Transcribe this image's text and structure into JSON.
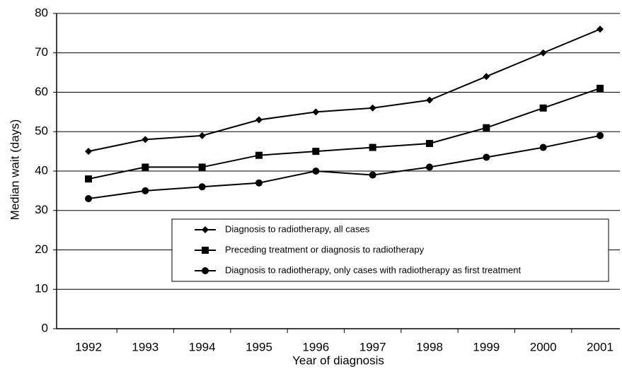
{
  "chart_data": {
    "type": "line",
    "xlabel": "Year of diagnosis",
    "ylabel": "Median wait (days)",
    "categories": [
      "1992",
      "1993",
      "1994",
      "1995",
      "1996",
      "1997",
      "1998",
      "1999",
      "2000",
      "2001"
    ],
    "series": [
      {
        "name": "Diagnosis to radiotherapy, all cases",
        "color": "#000000",
        "marker": "diamond",
        "values": [
          45,
          48,
          49,
          53,
          55,
          56,
          58,
          64,
          70,
          76
        ]
      },
      {
        "name": "Preceding treatment or diagnosis to radiotherapy",
        "color": "#000000",
        "marker": "square",
        "values": [
          38,
          41,
          41,
          44,
          45,
          46,
          47,
          51,
          56,
          61
        ]
      },
      {
        "name": "Diagnosis to radiotherapy, only cases with radiotherapy as first treatment",
        "color": "#000000",
        "marker": "circle",
        "values": [
          33,
          35,
          36,
          37,
          40,
          39,
          41,
          43.5,
          46,
          49
        ]
      }
    ],
    "ylim": [
      0,
      80
    ],
    "yticks": [
      0,
      10,
      20,
      30,
      40,
      50,
      60,
      70,
      80
    ],
    "grid": true,
    "legend": "lower right"
  }
}
